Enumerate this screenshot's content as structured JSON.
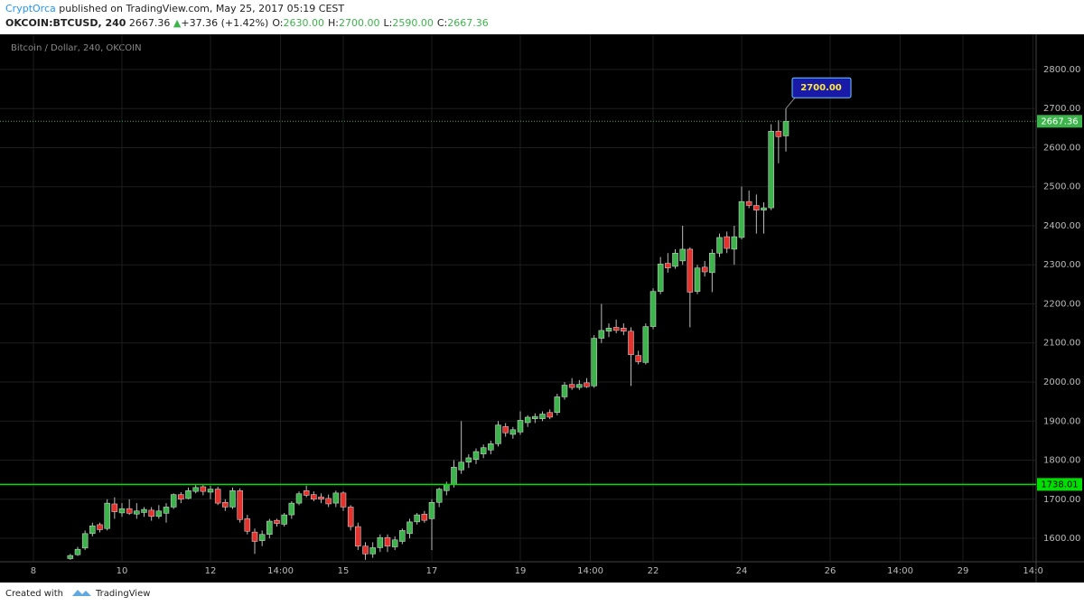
{
  "header": {
    "author": "CryptOrca",
    "published": "published on TradingView.com, May 25, 2017 05:19 CEST",
    "symbol": "OKCOIN:BTCUSD, 240",
    "last": "2667.36",
    "arrow": "▲",
    "change": "+37.36 (+1.42%)",
    "ohlc": [
      {
        "label": "O:",
        "value": "2630.00"
      },
      {
        "label": "H:",
        "value": "2700.00"
      },
      {
        "label": "L:",
        "value": "2590.00"
      },
      {
        "label": "C:",
        "value": "2667.36"
      }
    ]
  },
  "chart_data": {
    "type": "candlestick",
    "title": "Bitcoin / Dollar, 240, OKCOIN",
    "up_color": "#3cb44b",
    "down_color": "#e5322d",
    "x": [
      8.8333,
      9,
      9.1667,
      9.3333,
      9.5,
      9.6667,
      9.8333,
      10,
      10.1667,
      10.3333,
      10.5,
      10.6667,
      10.8333,
      11,
      11.1667,
      11.3333,
      11.5,
      11.6667,
      11.8333,
      12,
      12.1667,
      12.3333,
      12.5,
      12.6667,
      12.8333,
      13,
      13.1667,
      13.3333,
      13.5,
      13.6667,
      13.8333,
      14,
      14.1667,
      14.3333,
      14.5,
      14.6667,
      14.8333,
      15,
      15.1667,
      15.3333,
      15.5,
      15.6667,
      15.8333,
      16,
      16.1667,
      16.3333,
      16.5,
      16.6667,
      16.8333,
      17,
      17.1667,
      17.3333,
      17.5,
      17.6667,
      17.8333,
      18,
      18.1667,
      18.3333,
      18.5,
      18.6667,
      18.8333,
      19,
      19.1667,
      19.3333,
      19.5,
      19.6667,
      19.8333,
      20,
      20.1667,
      20.3333,
      20.5,
      20.6667,
      20.8333,
      21,
      21.1667,
      21.3333,
      21.5,
      21.6667,
      21.8333,
      22,
      22.1667,
      22.3333,
      22.5,
      22.6667,
      22.8333,
      23,
      23.1667,
      23.3333,
      23.5,
      23.6667,
      23.8333,
      24,
      24.1667,
      24.3333,
      24.5,
      24.6667,
      24.8333,
      25
    ],
    "open": [
      1548,
      1558,
      1575,
      1612,
      1635,
      1625,
      1688,
      1665,
      1676,
      1662,
      1666,
      1672,
      1656,
      1664,
      1680,
      1712,
      1702,
      1720,
      1732,
      1718,
      1726,
      1692,
      1680,
      1722,
      1650,
      1616,
      1594,
      1610,
      1646,
      1636,
      1660,
      1690,
      1722,
      1712,
      1706,
      1702,
      1690,
      1716,
      1680,
      1630,
      1580,
      1560,
      1576,
      1602,
      1578,
      1592,
      1612,
      1642,
      1662,
      1650,
      1692,
      1722,
      1738,
      1775,
      1795,
      1802,
      1816,
      1826,
      1842,
      1886,
      1866,
      1872,
      1896,
      1906,
      1906,
      1922,
      1922,
      1962,
      1994,
      1986,
      1998,
      1990,
      2112,
      2130,
      2140,
      2138,
      2130,
      2068,
      2050,
      2142,
      2232,
      2304,
      2296,
      2310,
      2340,
      2232,
      2294,
      2280,
      2330,
      2372,
      2340,
      2370,
      2462,
      2452,
      2440,
      2446,
      2642,
      2630
    ],
    "high": [
      1560,
      1578,
      1620,
      1640,
      1640,
      1700,
      1705,
      1690,
      1700,
      1690,
      1680,
      1680,
      1685,
      1690,
      1715,
      1718,
      1730,
      1738,
      1738,
      1735,
      1732,
      1700,
      1730,
      1728,
      1660,
      1625,
      1620,
      1650,
      1650,
      1665,
      1695,
      1720,
      1735,
      1720,
      1715,
      1712,
      1722,
      1720,
      1685,
      1640,
      1590,
      1590,
      1610,
      1610,
      1605,
      1625,
      1650,
      1665,
      1670,
      1700,
      1730,
      1745,
      1800,
      1900,
      1815,
      1830,
      1840,
      1850,
      1900,
      1895,
      1885,
      1925,
      1915,
      1920,
      1925,
      1930,
      1970,
      2000,
      2010,
      2005,
      2010,
      2120,
      2200,
      2150,
      2160,
      2150,
      2140,
      2080,
      2150,
      2240,
      2320,
      2330,
      2340,
      2400,
      2345,
      2300,
      2310,
      2340,
      2380,
      2385,
      2400,
      2500,
      2490,
      2480,
      2460,
      2660,
      2670,
      2700
    ],
    "low": [
      1545,
      1555,
      1570,
      1605,
      1615,
      1620,
      1650,
      1655,
      1660,
      1650,
      1655,
      1645,
      1650,
      1640,
      1675,
      1690,
      1700,
      1715,
      1710,
      1700,
      1685,
      1670,
      1675,
      1640,
      1610,
      1560,
      1580,
      1600,
      1630,
      1630,
      1650,
      1685,
      1705,
      1695,
      1690,
      1680,
      1680,
      1670,
      1620,
      1570,
      1545,
      1550,
      1565,
      1565,
      1570,
      1585,
      1600,
      1635,
      1640,
      1570,
      1680,
      1710,
      1730,
      1765,
      1780,
      1790,
      1805,
      1815,
      1835,
      1860,
      1855,
      1865,
      1885,
      1895,
      1900,
      1905,
      1915,
      1955,
      1980,
      1980,
      1985,
      1985,
      2100,
      2115,
      2125,
      2120,
      1990,
      2045,
      2045,
      2135,
      2225,
      2280,
      2290,
      2300,
      2140,
      2225,
      2270,
      2230,
      2320,
      2330,
      2300,
      2365,
      2445,
      2380,
      2380,
      2440,
      2560,
      2590
    ],
    "close": [
      1556,
      1572,
      1612,
      1632,
      1622,
      1690,
      1668,
      1676,
      1664,
      1670,
      1674,
      1656,
      1670,
      1680,
      1712,
      1700,
      1722,
      1730,
      1720,
      1726,
      1690,
      1680,
      1722,
      1648,
      1618,
      1592,
      1610,
      1644,
      1638,
      1660,
      1690,
      1714,
      1710,
      1700,
      1700,
      1688,
      1716,
      1680,
      1630,
      1580,
      1560,
      1576,
      1602,
      1580,
      1596,
      1620,
      1642,
      1660,
      1646,
      1692,
      1726,
      1738,
      1782,
      1795,
      1806,
      1822,
      1832,
      1842,
      1890,
      1870,
      1878,
      1902,
      1910,
      1912,
      1918,
      1910,
      1962,
      1992,
      1986,
      1994,
      1988,
      2112,
      2132,
      2138,
      2132,
      2130,
      2070,
      2052,
      2142,
      2232,
      2302,
      2292,
      2330,
      2340,
      2230,
      2292,
      2282,
      2330,
      2370,
      2342,
      2372,
      2462,
      2452,
      2440,
      2446,
      2642,
      2628,
      2667.36
    ],
    "xlim": [
      7.245,
      30.653
    ],
    "ylim": [
      1540,
      2890
    ],
    "xticks": [
      8,
      10,
      12,
      {
        "value": 13.5833,
        "label": "14:00"
      },
      15,
      17,
      19,
      {
        "value": 20.5833,
        "label": "14:00"
      },
      22,
      24,
      26,
      {
        "value": 27.5833,
        "label": "14:00"
      },
      29,
      {
        "value": 30.5833,
        "label": "14:0"
      }
    ],
    "yticks": [
      {
        "value": 1600,
        "label": "1600.00"
      },
      {
        "value": 1700,
        "label": "1700.00"
      },
      {
        "value": 1800,
        "label": "1800.00"
      },
      {
        "value": 1900,
        "label": "1900.00"
      },
      {
        "value": 2000,
        "label": "2000.00"
      },
      {
        "value": 2100,
        "label": "2100.00"
      },
      {
        "value": 2200,
        "label": "2200.00"
      },
      {
        "value": 2300,
        "label": "2300.00"
      },
      {
        "value": 2400,
        "label": "2400.00"
      },
      {
        "value": 2500,
        "label": "2500.00"
      },
      {
        "value": 2600,
        "label": "2600.00"
      },
      {
        "value": 2700,
        "label": "2700.00"
      },
      {
        "value": 2800,
        "label": "2800.00"
      }
    ],
    "grid": true,
    "hlines": [
      {
        "value": 1738.01,
        "label": "1738.01",
        "color": "#00e000",
        "style": "solid"
      },
      {
        "value": 2667.36,
        "label": "2667.36",
        "color": "#3cb44b",
        "style": "dotted"
      }
    ],
    "callout": {
      "value": 2700,
      "label": "2700.00"
    }
  },
  "footer": {
    "created": "Created with",
    "brand": "TradingView"
  }
}
